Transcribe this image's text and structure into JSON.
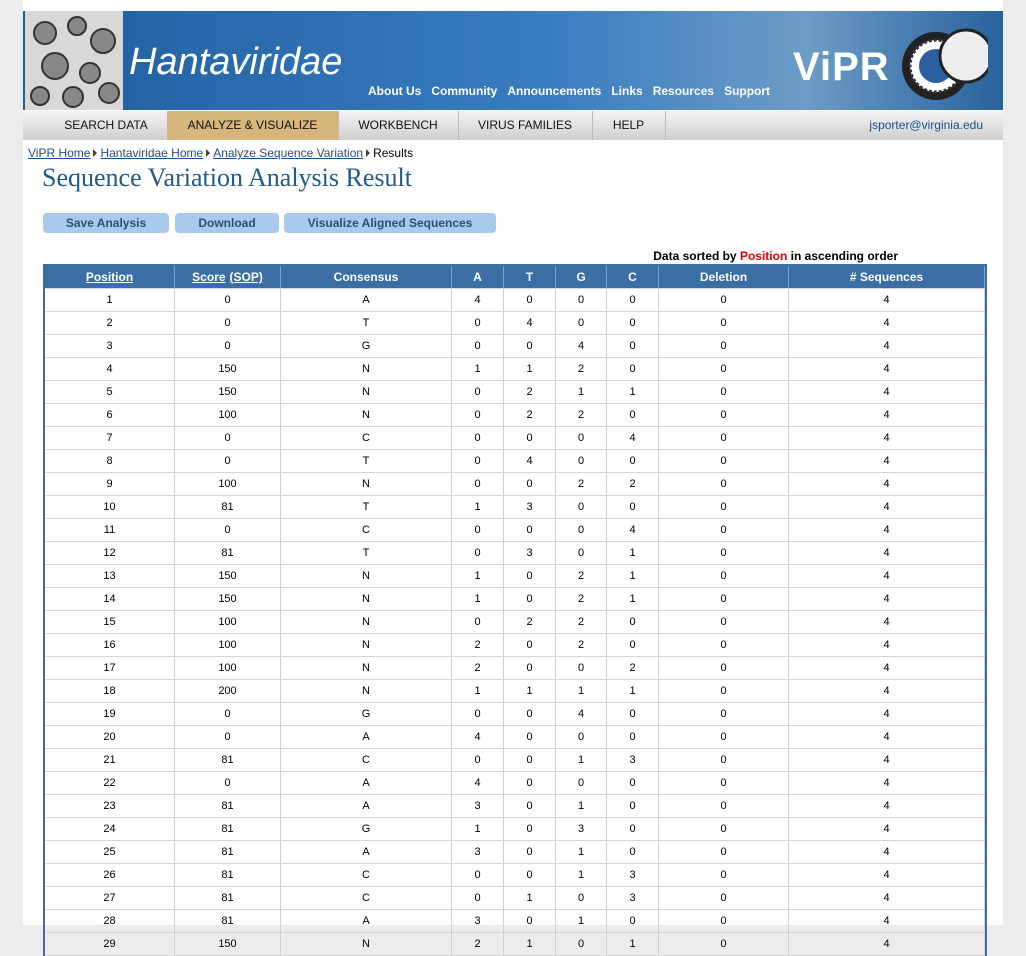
{
  "banner": {
    "title": "Hantaviridae",
    "logo": "ViPR"
  },
  "top_links": [
    "About Us",
    "Community",
    "Announcements",
    "Links",
    "Resources",
    "Support"
  ],
  "menu": {
    "items": [
      "SEARCH DATA",
      "ANALYZE & VISUALIZE",
      "WORKBENCH",
      "VIRUS FAMILIES",
      "HELP"
    ],
    "active": 1,
    "user": "jsporter@virginia.edu"
  },
  "breadcrumbs": [
    "ViPR Home",
    "Hantaviridae Home",
    "Analyze Sequence Variation",
    "Results"
  ],
  "page_title": "Sequence Variation Analysis Result",
  "buttons": [
    "Save Analysis",
    "Download",
    "Visualize Aligned Sequences"
  ],
  "sort_note": {
    "prefix": "Data sorted by",
    "field": "Position",
    "suffix": "in ascending order"
  },
  "table": {
    "columns": [
      {
        "label": "Position"
      },
      {
        "label": "Score",
        "note": "(SOP)"
      },
      {
        "label": "Consensus"
      },
      {
        "label": "A"
      },
      {
        "label": "T"
      },
      {
        "label": "G"
      },
      {
        "label": "C"
      },
      {
        "label": "Deletion"
      },
      {
        "label": "# Sequences"
      }
    ],
    "rows": [
      [
        1,
        0,
        "A",
        4,
        0,
        0,
        0,
        0,
        4
      ],
      [
        2,
        0,
        "T",
        0,
        4,
        0,
        0,
        0,
        4
      ],
      [
        3,
        0,
        "G",
        0,
        0,
        4,
        0,
        0,
        4
      ],
      [
        4,
        150,
        "N",
        1,
        1,
        2,
        0,
        0,
        4
      ],
      [
        5,
        150,
        "N",
        0,
        2,
        1,
        1,
        0,
        4
      ],
      [
        6,
        100,
        "N",
        0,
        2,
        2,
        0,
        0,
        4
      ],
      [
        7,
        0,
        "C",
        0,
        0,
        0,
        4,
        0,
        4
      ],
      [
        8,
        0,
        "T",
        0,
        4,
        0,
        0,
        0,
        4
      ],
      [
        9,
        100,
        "N",
        0,
        0,
        2,
        2,
        0,
        4
      ],
      [
        10,
        81,
        "T",
        1,
        3,
        0,
        0,
        0,
        4
      ],
      [
        11,
        0,
        "C",
        0,
        0,
        0,
        4,
        0,
        4
      ],
      [
        12,
        81,
        "T",
        0,
        3,
        0,
        1,
        0,
        4
      ],
      [
        13,
        150,
        "N",
        1,
        0,
        2,
        1,
        0,
        4
      ],
      [
        14,
        150,
        "N",
        1,
        0,
        2,
        1,
        0,
        4
      ],
      [
        15,
        100,
        "N",
        0,
        2,
        2,
        0,
        0,
        4
      ],
      [
        16,
        100,
        "N",
        2,
        0,
        2,
        0,
        0,
        4
      ],
      [
        17,
        100,
        "N",
        2,
        0,
        0,
        2,
        0,
        4
      ],
      [
        18,
        200,
        "N",
        1,
        1,
        1,
        1,
        0,
        4
      ],
      [
        19,
        0,
        "G",
        0,
        0,
        4,
        0,
        0,
        4
      ],
      [
        20,
        0,
        "A",
        4,
        0,
        0,
        0,
        0,
        4
      ],
      [
        21,
        81,
        "C",
        0,
        0,
        1,
        3,
        0,
        4
      ],
      [
        22,
        0,
        "A",
        4,
        0,
        0,
        0,
        0,
        4
      ],
      [
        23,
        81,
        "A",
        3,
        0,
        1,
        0,
        0,
        4
      ],
      [
        24,
        81,
        "G",
        1,
        0,
        3,
        0,
        0,
        4
      ],
      [
        25,
        81,
        "A",
        3,
        0,
        1,
        0,
        0,
        4
      ],
      [
        26,
        81,
        "C",
        0,
        0,
        1,
        3,
        0,
        4
      ],
      [
        27,
        81,
        "C",
        0,
        1,
        0,
        3,
        0,
        4
      ],
      [
        28,
        81,
        "A",
        3,
        0,
        1,
        0,
        0,
        4
      ],
      [
        29,
        150,
        "N",
        2,
        1,
        0,
        1,
        0,
        4
      ]
    ]
  }
}
